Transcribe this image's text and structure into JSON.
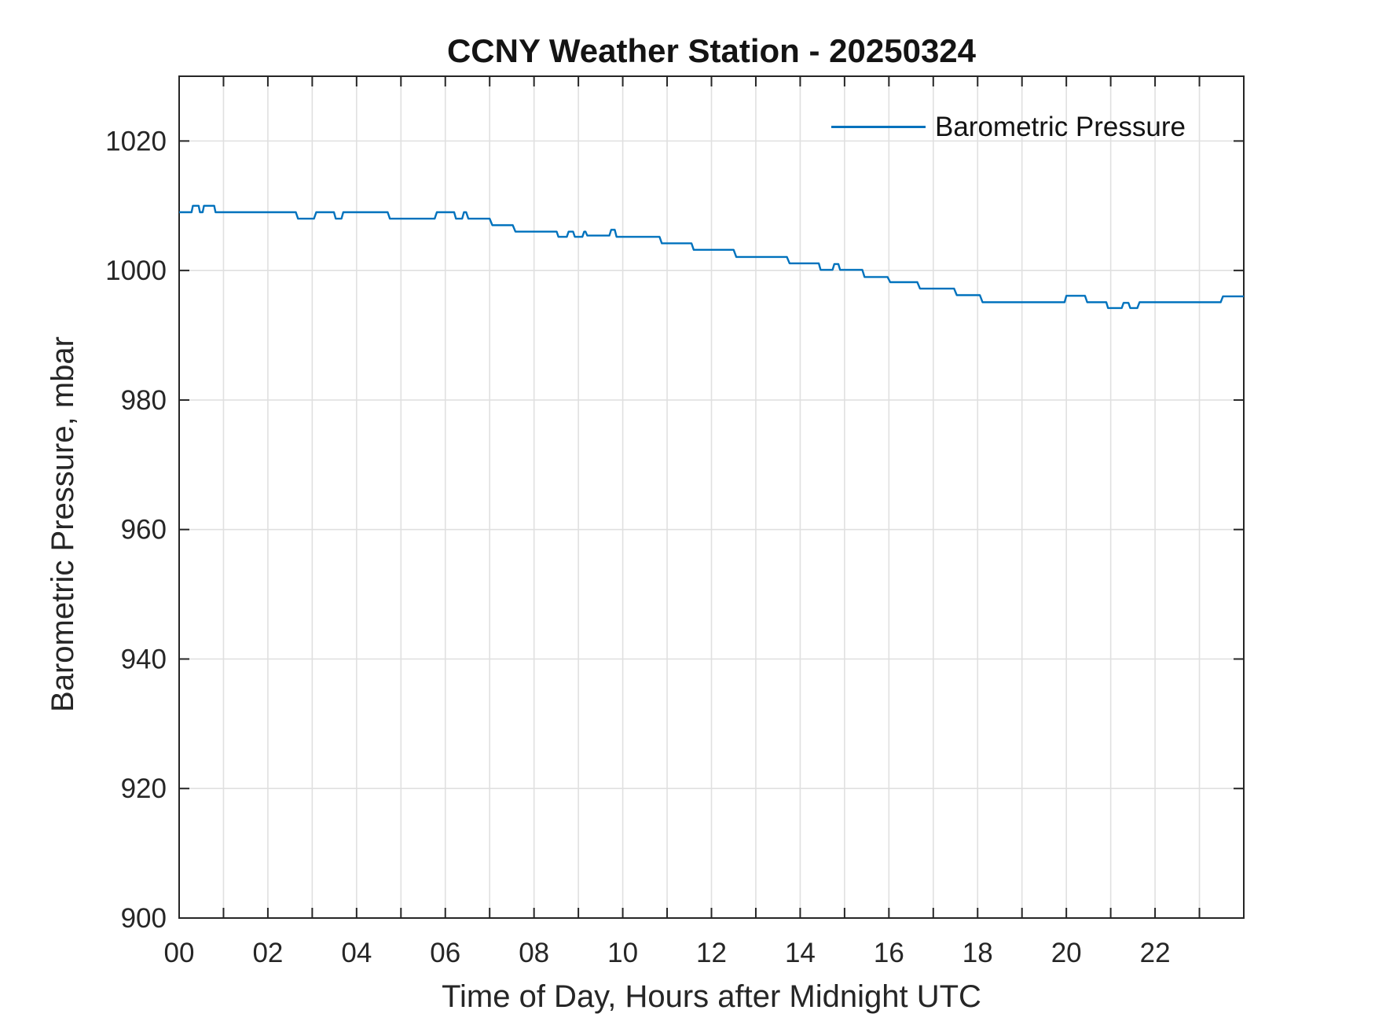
{
  "title": "CCNY Weather Station - 20250324",
  "chart_data": {
    "type": "line",
    "title": "CCNY Weather Station - 20250324",
    "xlabel": "Time of Day, Hours after Midnight UTC",
    "ylabel": "Barometric Pressure, mbar",
    "xlim": [
      0,
      24
    ],
    "ylim": [
      900,
      1030
    ],
    "grid": true,
    "box": true,
    "tick_direction": "in",
    "legend": {
      "entries": [
        "Barometric Pressure"
      ],
      "position": "northeast",
      "box": false
    },
    "colors": {
      "line": "#0072BD",
      "axis": "#262626",
      "grid": "#e0e0e0",
      "text": "#262626"
    },
    "xticks": [
      {
        "value": 0,
        "label": "00"
      },
      {
        "value": 2,
        "label": "02"
      },
      {
        "value": 4,
        "label": "04"
      },
      {
        "value": 6,
        "label": "06"
      },
      {
        "value": 8,
        "label": "08"
      },
      {
        "value": 10,
        "label": "10"
      },
      {
        "value": 12,
        "label": "12"
      },
      {
        "value": 14,
        "label": "14"
      },
      {
        "value": 16,
        "label": "16"
      },
      {
        "value": 18,
        "label": "18"
      },
      {
        "value": 20,
        "label": "20"
      },
      {
        "value": 22,
        "label": "22"
      }
    ],
    "xticks_minor": [
      0,
      1,
      2,
      3,
      4,
      5,
      6,
      7,
      8,
      9,
      10,
      11,
      12,
      13,
      14,
      15,
      16,
      17,
      18,
      19,
      20,
      21,
      22,
      23,
      24
    ],
    "yticks": [
      {
        "value": 900,
        "label": "900"
      },
      {
        "value": 920,
        "label": "920"
      },
      {
        "value": 940,
        "label": "940"
      },
      {
        "value": 960,
        "label": "960"
      },
      {
        "value": 980,
        "label": "980"
      },
      {
        "value": 1000,
        "label": "1000"
      },
      {
        "value": 1020,
        "label": "1020"
      }
    ],
    "series": [
      {
        "name": "Barometric Pressure",
        "color": "#0072BD",
        "x": [
          0,
          0.28,
          0.31,
          0.44,
          0.47,
          0.53,
          0.56,
          0.79,
          0.82,
          2.63,
          2.68,
          3.04,
          3.09,
          3.49,
          3.53,
          3.66,
          3.7,
          4.7,
          4.75,
          5.76,
          5.81,
          6.2,
          6.24,
          6.38,
          6.42,
          6.47,
          6.52,
          7.0,
          7.06,
          7.52,
          7.58,
          8.51,
          8.55,
          8.74,
          8.78,
          8.88,
          8.92,
          9.09,
          9.13,
          9.16,
          9.2,
          9.7,
          9.74,
          9.82,
          9.86,
          10.83,
          10.88,
          11.55,
          11.6,
          12.5,
          12.56,
          13.7,
          13.76,
          14.42,
          14.46,
          14.73,
          14.77,
          14.86,
          14.9,
          15.4,
          15.45,
          15.97,
          16.03,
          16.64,
          16.7,
          17.47,
          17.53,
          18.05,
          18.11,
          19.96,
          20.0,
          20.42,
          20.47,
          20.9,
          20.94,
          21.25,
          21.29,
          21.4,
          21.44,
          21.6,
          21.65,
          23.48,
          23.53,
          24.0
        ],
        "y": [
          1009,
          1009,
          1010,
          1010,
          1009,
          1009,
          1010,
          1010,
          1009,
          1009,
          1008,
          1008,
          1009,
          1009,
          1008,
          1008,
          1009,
          1009,
          1008,
          1008,
          1009,
          1009,
          1008,
          1008,
          1009,
          1009,
          1008,
          1008,
          1007,
          1007,
          1006,
          1006,
          1005.2,
          1005.2,
          1006,
          1006,
          1005.2,
          1005.2,
          1006,
          1006,
          1005.4,
          1005.4,
          1006.3,
          1006.3,
          1005.2,
          1005.2,
          1004.2,
          1004.2,
          1003.2,
          1003.2,
          1002.1,
          1002.1,
          1001.1,
          1001.1,
          1000.1,
          1000.1,
          1001,
          1001,
          1000.1,
          1000.1,
          999,
          999,
          998.2,
          998.2,
          997.2,
          997.2,
          996.2,
          996.2,
          995.1,
          995.1,
          996.1,
          996.1,
          995.1,
          995.1,
          994.2,
          994.2,
          995,
          995,
          994.2,
          994.2,
          995.1,
          995.1,
          996,
          996
        ]
      }
    ]
  }
}
